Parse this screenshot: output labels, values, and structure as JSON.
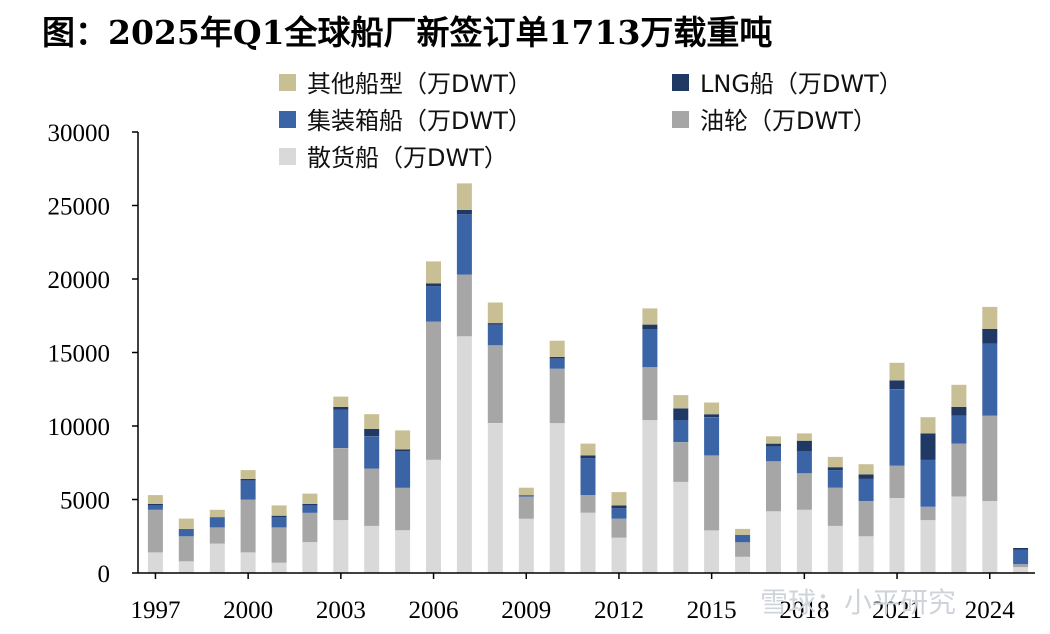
{
  "title": "图：2025年Q1全球船厂新签订单1713万载重吨",
  "watermark": "雪球：小平研究",
  "colors": {
    "other": "#c9bf94",
    "lng": "#1f3864",
    "container": "#3b64a6",
    "tanker": "#a6a6a6",
    "bulk": "#d9d9d9"
  },
  "chart_data": {
    "type": "bar",
    "stacked": true,
    "ylim": [
      0,
      30000
    ],
    "yticks": [
      "0",
      "5000",
      "10000",
      "15000",
      "20000",
      "25000",
      "30000"
    ],
    "x_tick_labels": [
      "1997",
      "2000",
      "2003",
      "2006",
      "2009",
      "2012",
      "2015",
      "2018",
      "2021",
      "2024"
    ],
    "legend_position": "top",
    "categories": [
      "1997",
      "1998",
      "1999",
      "2000",
      "2001",
      "2002",
      "2003",
      "2004",
      "2005",
      "2006",
      "2007",
      "2008",
      "2009",
      "2010",
      "2011",
      "2012",
      "2013",
      "2014",
      "2015",
      "2016",
      "2017",
      "2018",
      "2019",
      "2020",
      "2021",
      "2022",
      "2023",
      "2024",
      "2025"
    ],
    "series": [
      {
        "key": "bulk",
        "name": "散货船（万DWT）",
        "values": [
          1400,
          800,
          2000,
          1400,
          700,
          2100,
          3600,
          3200,
          2900,
          7700,
          16100,
          10200,
          3700,
          10200,
          4100,
          2400,
          10400,
          6200,
          2900,
          1100,
          4200,
          4300,
          3200,
          2500,
          5100,
          3600,
          5200,
          4900,
          400
        ]
      },
      {
        "key": "tanker",
        "name": "油轮（万DWT）",
        "values": [
          2900,
          1700,
          1100,
          3600,
          2400,
          2000,
          4900,
          3900,
          2900,
          9400,
          4200,
          5300,
          1500,
          3700,
          1200,
          1300,
          3600,
          2700,
          5100,
          1000,
          3400,
          2500,
          2600,
          2400,
          2200,
          900,
          3600,
          5800,
          200
        ]
      },
      {
        "key": "container",
        "name": "集装箱船（万DWT）",
        "values": [
          300,
          500,
          700,
          1300,
          700,
          500,
          2600,
          2200,
          2500,
          2400,
          4100,
          1400,
          100,
          700,
          2500,
          700,
          2600,
          1500,
          2600,
          500,
          1000,
          1500,
          1200,
          1500,
          5200,
          3200,
          1900,
          4900,
          1000
        ]
      },
      {
        "key": "lng",
        "name": "LNG船（万DWT）",
        "values": [
          100,
          0,
          0,
          100,
          100,
          100,
          200,
          500,
          100,
          200,
          300,
          100,
          0,
          100,
          200,
          200,
          300,
          800,
          200,
          0,
          200,
          700,
          200,
          300,
          600,
          1800,
          600,
          1000,
          100
        ]
      },
      {
        "key": "other",
        "name": "其他船型（万DWT）",
        "values": [
          600,
          700,
          500,
          600,
          700,
          700,
          700,
          1000,
          1300,
          1500,
          1800,
          1400,
          500,
          1100,
          800,
          900,
          1100,
          900,
          800,
          400,
          500,
          500,
          700,
          700,
          1200,
          1100,
          1500,
          1500,
          0
        ]
      }
    ]
  },
  "legend": [
    {
      "key": "other",
      "label": "其他船型（万DWT）"
    },
    {
      "key": "lng",
      "label": "LNG船（万DWT）"
    },
    {
      "key": "container",
      "label": "集装箱船（万DWT）"
    },
    {
      "key": "tanker",
      "label": "油轮（万DWT）"
    },
    {
      "key": "bulk",
      "label": "散货船（万DWT）"
    }
  ]
}
